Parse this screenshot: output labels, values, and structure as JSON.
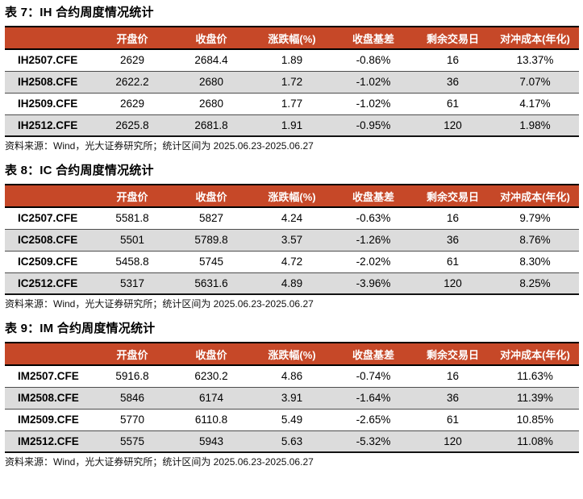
{
  "colors": {
    "header_bg": "#C64828",
    "header_text": "#ffffff",
    "stripe_bg": "#DCDCDC",
    "border_heavy": "#000000",
    "border_light": "#4d4d4d",
    "text": "#000000"
  },
  "columns": [
    "开盘价",
    "收盘价",
    "涨跌幅(%)",
    "收盘基差",
    "剩余交易日",
    "对冲成本(年化)"
  ],
  "tables": [
    {
      "title": "表 7：IH 合约周度情况统计",
      "source": "资料来源：Wind，光大证券研究所；统计区间为 2025.06.23-2025.06.27",
      "rows": [
        {
          "contract": "IH2507.CFE",
          "values": [
            "2629",
            "2684.4",
            "1.89",
            "-0.86%",
            "16",
            "13.37%"
          ]
        },
        {
          "contract": "IH2508.CFE",
          "values": [
            "2622.2",
            "2680",
            "1.72",
            "-1.02%",
            "36",
            "7.07%"
          ]
        },
        {
          "contract": "IH2509.CFE",
          "values": [
            "2629",
            "2680",
            "1.77",
            "-1.02%",
            "61",
            "4.17%"
          ]
        },
        {
          "contract": "IH2512.CFE",
          "values": [
            "2625.8",
            "2681.8",
            "1.91",
            "-0.95%",
            "120",
            "1.98%"
          ]
        }
      ]
    },
    {
      "title": "表 8：IC 合约周度情况统计",
      "source": "资料来源：Wind，光大证券研究所；统计区间为 2025.06.23-2025.06.27",
      "rows": [
        {
          "contract": "IC2507.CFE",
          "values": [
            "5581.8",
            "5827",
            "4.24",
            "-0.63%",
            "16",
            "9.79%"
          ]
        },
        {
          "contract": "IC2508.CFE",
          "values": [
            "5501",
            "5789.8",
            "3.57",
            "-1.26%",
            "36",
            "8.76%"
          ]
        },
        {
          "contract": "IC2509.CFE",
          "values": [
            "5458.8",
            "5745",
            "4.72",
            "-2.02%",
            "61",
            "8.30%"
          ]
        },
        {
          "contract": "IC2512.CFE",
          "values": [
            "5317",
            "5631.6",
            "4.89",
            "-3.96%",
            "120",
            "8.25%"
          ]
        }
      ]
    },
    {
      "title": "表 9：IM 合约周度情况统计",
      "source": "资料来源：Wind，光大证券研究所；统计区间为 2025.06.23-2025.06.27",
      "rows": [
        {
          "contract": "IM2507.CFE",
          "values": [
            "5916.8",
            "6230.2",
            "4.86",
            "-0.74%",
            "16",
            "11.63%"
          ]
        },
        {
          "contract": "IM2508.CFE",
          "values": [
            "5846",
            "6174",
            "3.91",
            "-1.64%",
            "36",
            "11.39%"
          ]
        },
        {
          "contract": "IM2509.CFE",
          "values": [
            "5770",
            "6110.8",
            "5.49",
            "-2.65%",
            "61",
            "10.85%"
          ]
        },
        {
          "contract": "IM2512.CFE",
          "values": [
            "5575",
            "5943",
            "5.63",
            "-5.32%",
            "120",
            "11.08%"
          ]
        }
      ]
    }
  ]
}
